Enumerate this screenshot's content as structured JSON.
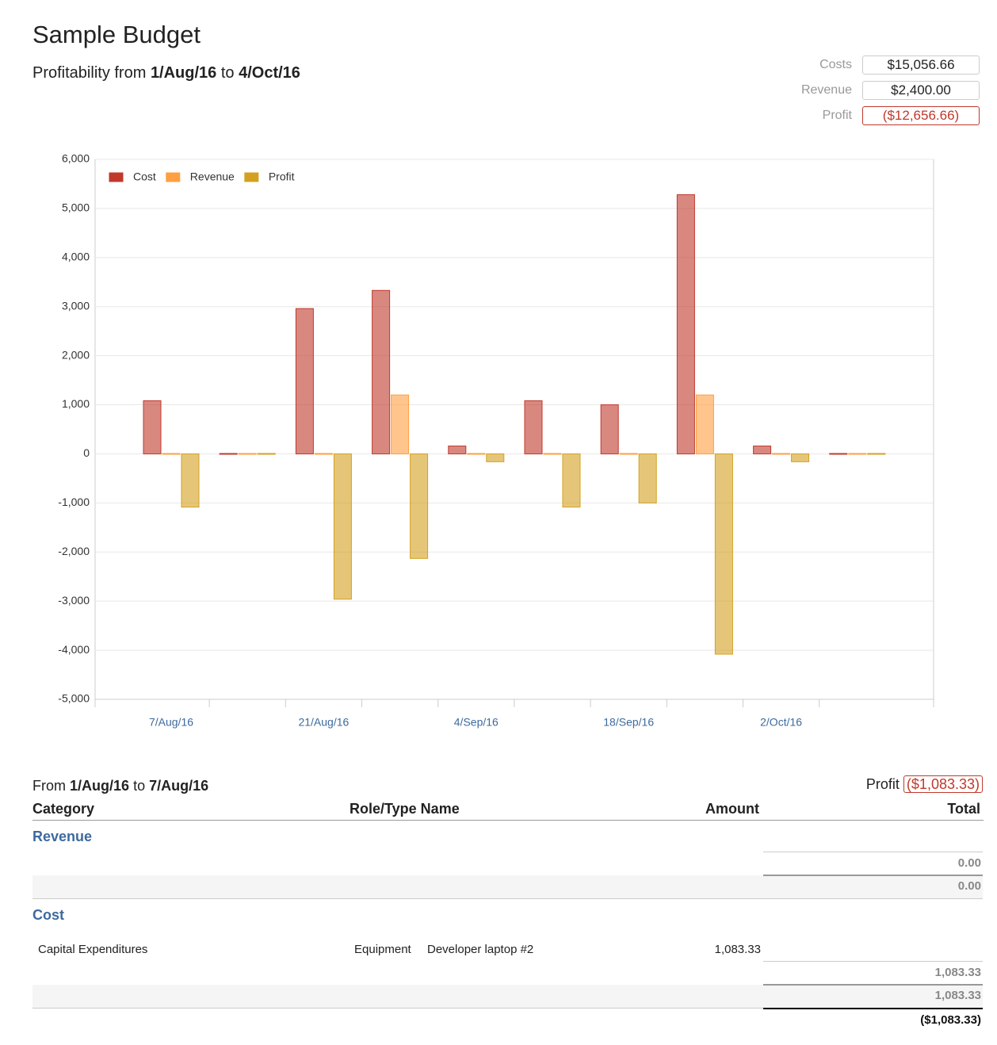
{
  "header": {
    "title": "Sample Budget",
    "subtitle_prefix": "Profitability from",
    "from": "1/Aug/16",
    "to_word": "to",
    "to": "4/Oct/16"
  },
  "summary": [
    {
      "label": "Costs",
      "value": "$15,056.66"
    },
    {
      "label": "Revenue",
      "value": "$2,400.00"
    },
    {
      "label": "Profit",
      "value": "($12,656.66)"
    }
  ],
  "chart_data": {
    "type": "bar",
    "categories": [
      "7/Aug/16",
      null,
      "21/Aug/16",
      null,
      "4/Sep/16",
      null,
      "18/Sep/16",
      null,
      "2/Oct/16",
      null
    ],
    "series": [
      {
        "name": "Cost",
        "color": "#c0392b",
        "values": [
          1083.33,
          0,
          2960,
          3330,
          160,
          1083.33,
          1000,
          5280,
          160,
          0
        ]
      },
      {
        "name": "Revenue",
        "color": "#ff9f40",
        "values": [
          0,
          0,
          0,
          1200,
          0,
          0,
          0,
          1200,
          0,
          0
        ]
      },
      {
        "name": "Profit",
        "color": "#d4a020",
        "values": [
          -1083.33,
          0,
          -2960,
          -2130,
          -160,
          -1083.33,
          -1000,
          -4080,
          -160,
          0
        ]
      }
    ],
    "ylim": [
      -5000,
      6000
    ],
    "yticks": [
      {
        "value": -5000,
        "label": "-5,000"
      },
      {
        "value": -4000,
        "label": "-4,000"
      },
      {
        "value": -3000,
        "label": "-3,000"
      },
      {
        "value": -2000,
        "label": "-2,000"
      },
      {
        "value": -1000,
        "label": "-1,000"
      },
      0,
      {
        "value": 1000,
        "label": "1,000"
      },
      {
        "value": 2000,
        "label": "2,000"
      },
      {
        "value": 3000,
        "label": "3,000"
      },
      {
        "value": 4000,
        "label": "4,000"
      },
      {
        "value": 5000,
        "label": "5,000"
      },
      {
        "value": 6000,
        "label": "6,000"
      }
    ],
    "grid": true,
    "legend": "top-left"
  },
  "table": {
    "period": {
      "prefix": "From",
      "from": "1/Aug/16",
      "to_word": "to",
      "to": "7/Aug/16"
    },
    "profit_label": "Profit",
    "profit_value": "($1,083.33)",
    "columns": [
      "Category",
      "Role/Type Name",
      "Amount",
      "Total"
    ],
    "sections": [
      {
        "name": "Revenue",
        "rows": [],
        "subtotal": "0.00",
        "total": "0.00"
      },
      {
        "name": "Cost",
        "rows": [
          [
            "Capital Expenditures",
            "Equipment",
            "Developer laptop #2",
            "1,083.33"
          ]
        ],
        "subtotal": "1,083.33",
        "total": "1,083.33"
      }
    ],
    "grand_total": "($1,083.33)"
  }
}
